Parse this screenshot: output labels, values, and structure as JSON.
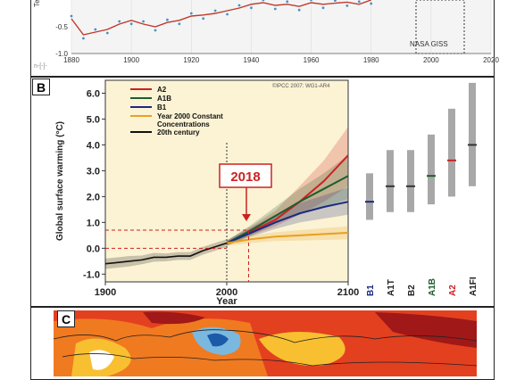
{
  "panel_a": {
    "letter": "",
    "credit": "NASA GISS",
    "tick_fragment": "Tem",
    "logo": "n-[-]-",
    "colors": {
      "line": "#c0392b",
      "dots": "#4a90c8",
      "bg": "#f4f4f4"
    },
    "chart_data": {
      "type": "line",
      "title": "",
      "xlabel": "",
      "ylabel": "",
      "xlim": [
        1880,
        2020
      ],
      "ylim": [
        -1.0,
        0.0
      ],
      "x_ticks": [
        "1880",
        "1900",
        "1920",
        "1940",
        "1960",
        "1980",
        "2000",
        "2020"
      ],
      "y_ticks": [
        "-0.5",
        "-1.0"
      ],
      "grid": true,
      "series": [
        {
          "name": "",
          "x": [
            1880,
            1884,
            1888,
            1892,
            1896,
            1900,
            1904,
            1908,
            1912,
            1916,
            1920,
            1924,
            1928,
            1932,
            1936,
            1940,
            1944,
            1948,
            1952,
            1956,
            1960,
            1964,
            1968,
            1972,
            1976,
            1980
          ],
          "y": [
            -0.35,
            -0.65,
            -0.6,
            -0.55,
            -0.45,
            -0.38,
            -0.45,
            -0.5,
            -0.42,
            -0.38,
            -0.3,
            -0.28,
            -0.25,
            -0.2,
            -0.15,
            -0.08,
            -0.05,
            -0.1,
            -0.08,
            -0.12,
            -0.05,
            -0.08,
            -0.06,
            -0.04,
            -0.08,
            0.0
          ]
        }
      ]
    }
  },
  "panel_b": {
    "letter": "B",
    "source": "©IPCC 2007: WG1-AR4",
    "annotation": "2018",
    "colors": {
      "plot_bg": "#fbf3d4",
      "a2": "#cc2222",
      "a1b": "#1d5e2e",
      "b1": "#1a2a80",
      "commit": "#e8a020",
      "century": "#111111",
      "dashed": "#cc2222",
      "range_bar": "#a8a8a8"
    },
    "chart_data": {
      "type": "line",
      "title": "",
      "xlabel": "Year",
      "ylabel": "Global surface warming (°C)",
      "xlim": [
        1900,
        2100
      ],
      "ylim": [
        -1.3,
        6.5
      ],
      "x_ticks": [
        "1900",
        "2000",
        "2100"
      ],
      "y_ticks": [
        "-1.0",
        "0.0",
        "1.0",
        "2.0",
        "3.0",
        "4.0",
        "5.0",
        "6.0"
      ],
      "legend": "top-left",
      "series": [
        {
          "name": "A2",
          "color": "#cc2222",
          "x": [
            2000,
            2020,
            2040,
            2060,
            2080,
            2100
          ],
          "y": [
            0.2,
            0.65,
            1.1,
            1.8,
            2.6,
            3.6
          ],
          "band": [
            [
              0.1,
              0.3
            ],
            [
              0.5,
              0.85
            ],
            [
              0.85,
              1.45
            ],
            [
              1.3,
              2.4
            ],
            [
              1.8,
              3.4
            ],
            [
              2.4,
              4.7
            ]
          ]
        },
        {
          "name": "A1B",
          "color": "#1d5e2e",
          "x": [
            2000,
            2020,
            2040,
            2060,
            2080,
            2100
          ],
          "y": [
            0.2,
            0.7,
            1.25,
            1.8,
            2.3,
            2.8
          ],
          "band": [
            [
              0.1,
              0.3
            ],
            [
              0.5,
              0.9
            ],
            [
              0.95,
              1.6
            ],
            [
              1.3,
              2.3
            ],
            [
              1.6,
              2.9
            ],
            [
              1.9,
              3.6
            ]
          ]
        },
        {
          "name": "B1",
          "color": "#1a2a80",
          "x": [
            2000,
            2020,
            2040,
            2060,
            2080,
            2100
          ],
          "y": [
            0.2,
            0.6,
            1.0,
            1.35,
            1.6,
            1.8
          ],
          "band": [
            [
              0.1,
              0.3
            ],
            [
              0.45,
              0.8
            ],
            [
              0.75,
              1.3
            ],
            [
              1.0,
              1.75
            ],
            [
              1.15,
              2.05
            ],
            [
              1.3,
              2.35
            ]
          ]
        },
        {
          "name": "Year 2000 Constant Concentrations",
          "color": "#e8a020",
          "x": [
            2000,
            2020,
            2040,
            2060,
            2080,
            2100
          ],
          "y": [
            0.2,
            0.35,
            0.45,
            0.5,
            0.55,
            0.6
          ],
          "band": [
            [
              0.1,
              0.3
            ],
            [
              0.2,
              0.5
            ],
            [
              0.28,
              0.62
            ],
            [
              0.3,
              0.7
            ],
            [
              0.32,
              0.78
            ],
            [
              0.35,
              0.85
            ]
          ]
        },
        {
          "name": "20th century",
          "color": "#111111",
          "x": [
            1900,
            1910,
            1920,
            1930,
            1940,
            1950,
            1960,
            1970,
            1980,
            1990,
            2000
          ],
          "y": [
            -0.6,
            -0.55,
            -0.5,
            -0.45,
            -0.35,
            -0.35,
            -0.3,
            -0.3,
            -0.1,
            0.05,
            0.2
          ],
          "band": [
            [
              -0.8,
              -0.4
            ],
            [
              -0.75,
              -0.35
            ],
            [
              -0.7,
              -0.3
            ],
            [
              -0.62,
              -0.28
            ],
            [
              -0.52,
              -0.18
            ],
            [
              -0.5,
              -0.2
            ],
            [
              -0.45,
              -0.15
            ],
            [
              -0.45,
              -0.15
            ],
            [
              -0.25,
              0.05
            ],
            [
              -0.1,
              0.2
            ],
            [
              0.05,
              0.35
            ]
          ]
        }
      ],
      "markers": {
        "year": 2018,
        "warming": 0.7
      }
    },
    "range_bars": [
      {
        "label": "B1",
        "low": 1.1,
        "high": 2.9,
        "best": 1.8,
        "color": "#1a2a80"
      },
      {
        "label": "A1T",
        "low": 1.4,
        "high": 3.8,
        "best": 2.4,
        "color": "#333333"
      },
      {
        "label": "B2",
        "low": 1.4,
        "high": 3.8,
        "best": 2.4,
        "color": "#333333"
      },
      {
        "label": "A1B",
        "low": 1.7,
        "high": 4.4,
        "best": 2.8,
        "color": "#1d5e2e"
      },
      {
        "label": "A2",
        "low": 2.0,
        "high": 5.4,
        "best": 3.4,
        "color": "#cc2222"
      },
      {
        "label": "A1FI",
        "low": 2.4,
        "high": 6.4,
        "best": 4.0,
        "color": "#333333"
      }
    ]
  },
  "panel_c": {
    "letter": "C",
    "colors": {
      "hot": "#c8201a",
      "warm": "#ee6a1a",
      "mild": "#f8c030",
      "cool": "#7ab8e0",
      "cold": "#1a5aa8",
      "white": "#ffffff"
    }
  }
}
